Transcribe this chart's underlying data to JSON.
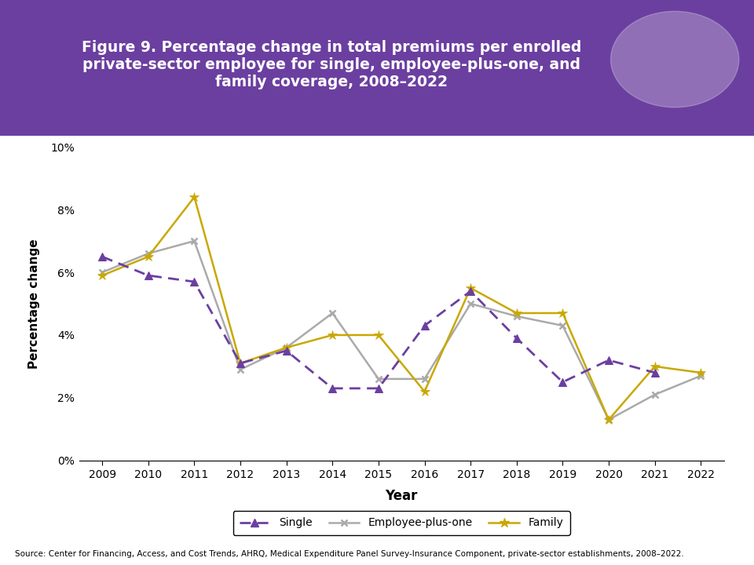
{
  "title": "Figure 9. Percentage change in total premiums per enrolled\nprivate-sector employee for single, employee-plus-one, and\nfamily coverage, 2008–2022",
  "xlabel": "Year",
  "ylabel": "Percentage change",
  "source_text": "Source: Center for Financing, Access, and Cost Trends, AHRQ, Medical Expenditure Panel Survey-Insurance Component, private-sector establishments, 2008–2022.",
  "years": [
    2009,
    2010,
    2011,
    2012,
    2013,
    2014,
    2015,
    2016,
    2017,
    2018,
    2019,
    2020,
    2021,
    2022
  ],
  "single": [
    0.065,
    0.059,
    0.057,
    0.031,
    0.035,
    0.023,
    0.023,
    0.043,
    0.054,
    0.039,
    0.025,
    0.032,
    0.028,
    null
  ],
  "employee_plus_one": [
    0.06,
    0.066,
    0.07,
    0.029,
    0.036,
    0.047,
    0.026,
    0.026,
    0.05,
    0.046,
    0.043,
    0.013,
    0.021,
    0.027
  ],
  "family": [
    0.059,
    0.065,
    0.084,
    0.031,
    0.036,
    0.04,
    0.04,
    0.022,
    0.055,
    0.047,
    0.047,
    0.013,
    0.03,
    0.028
  ],
  "single_color": "#6B3FA0",
  "employee_plus_one_color": "#AAAAAA",
  "family_color": "#C9A800",
  "header_bg_color": "#6B3FA0",
  "header_text_color": "#FFFFFF",
  "ylim": [
    0,
    0.1
  ],
  "yticks": [
    0,
    0.02,
    0.04,
    0.06,
    0.08,
    0.1
  ]
}
